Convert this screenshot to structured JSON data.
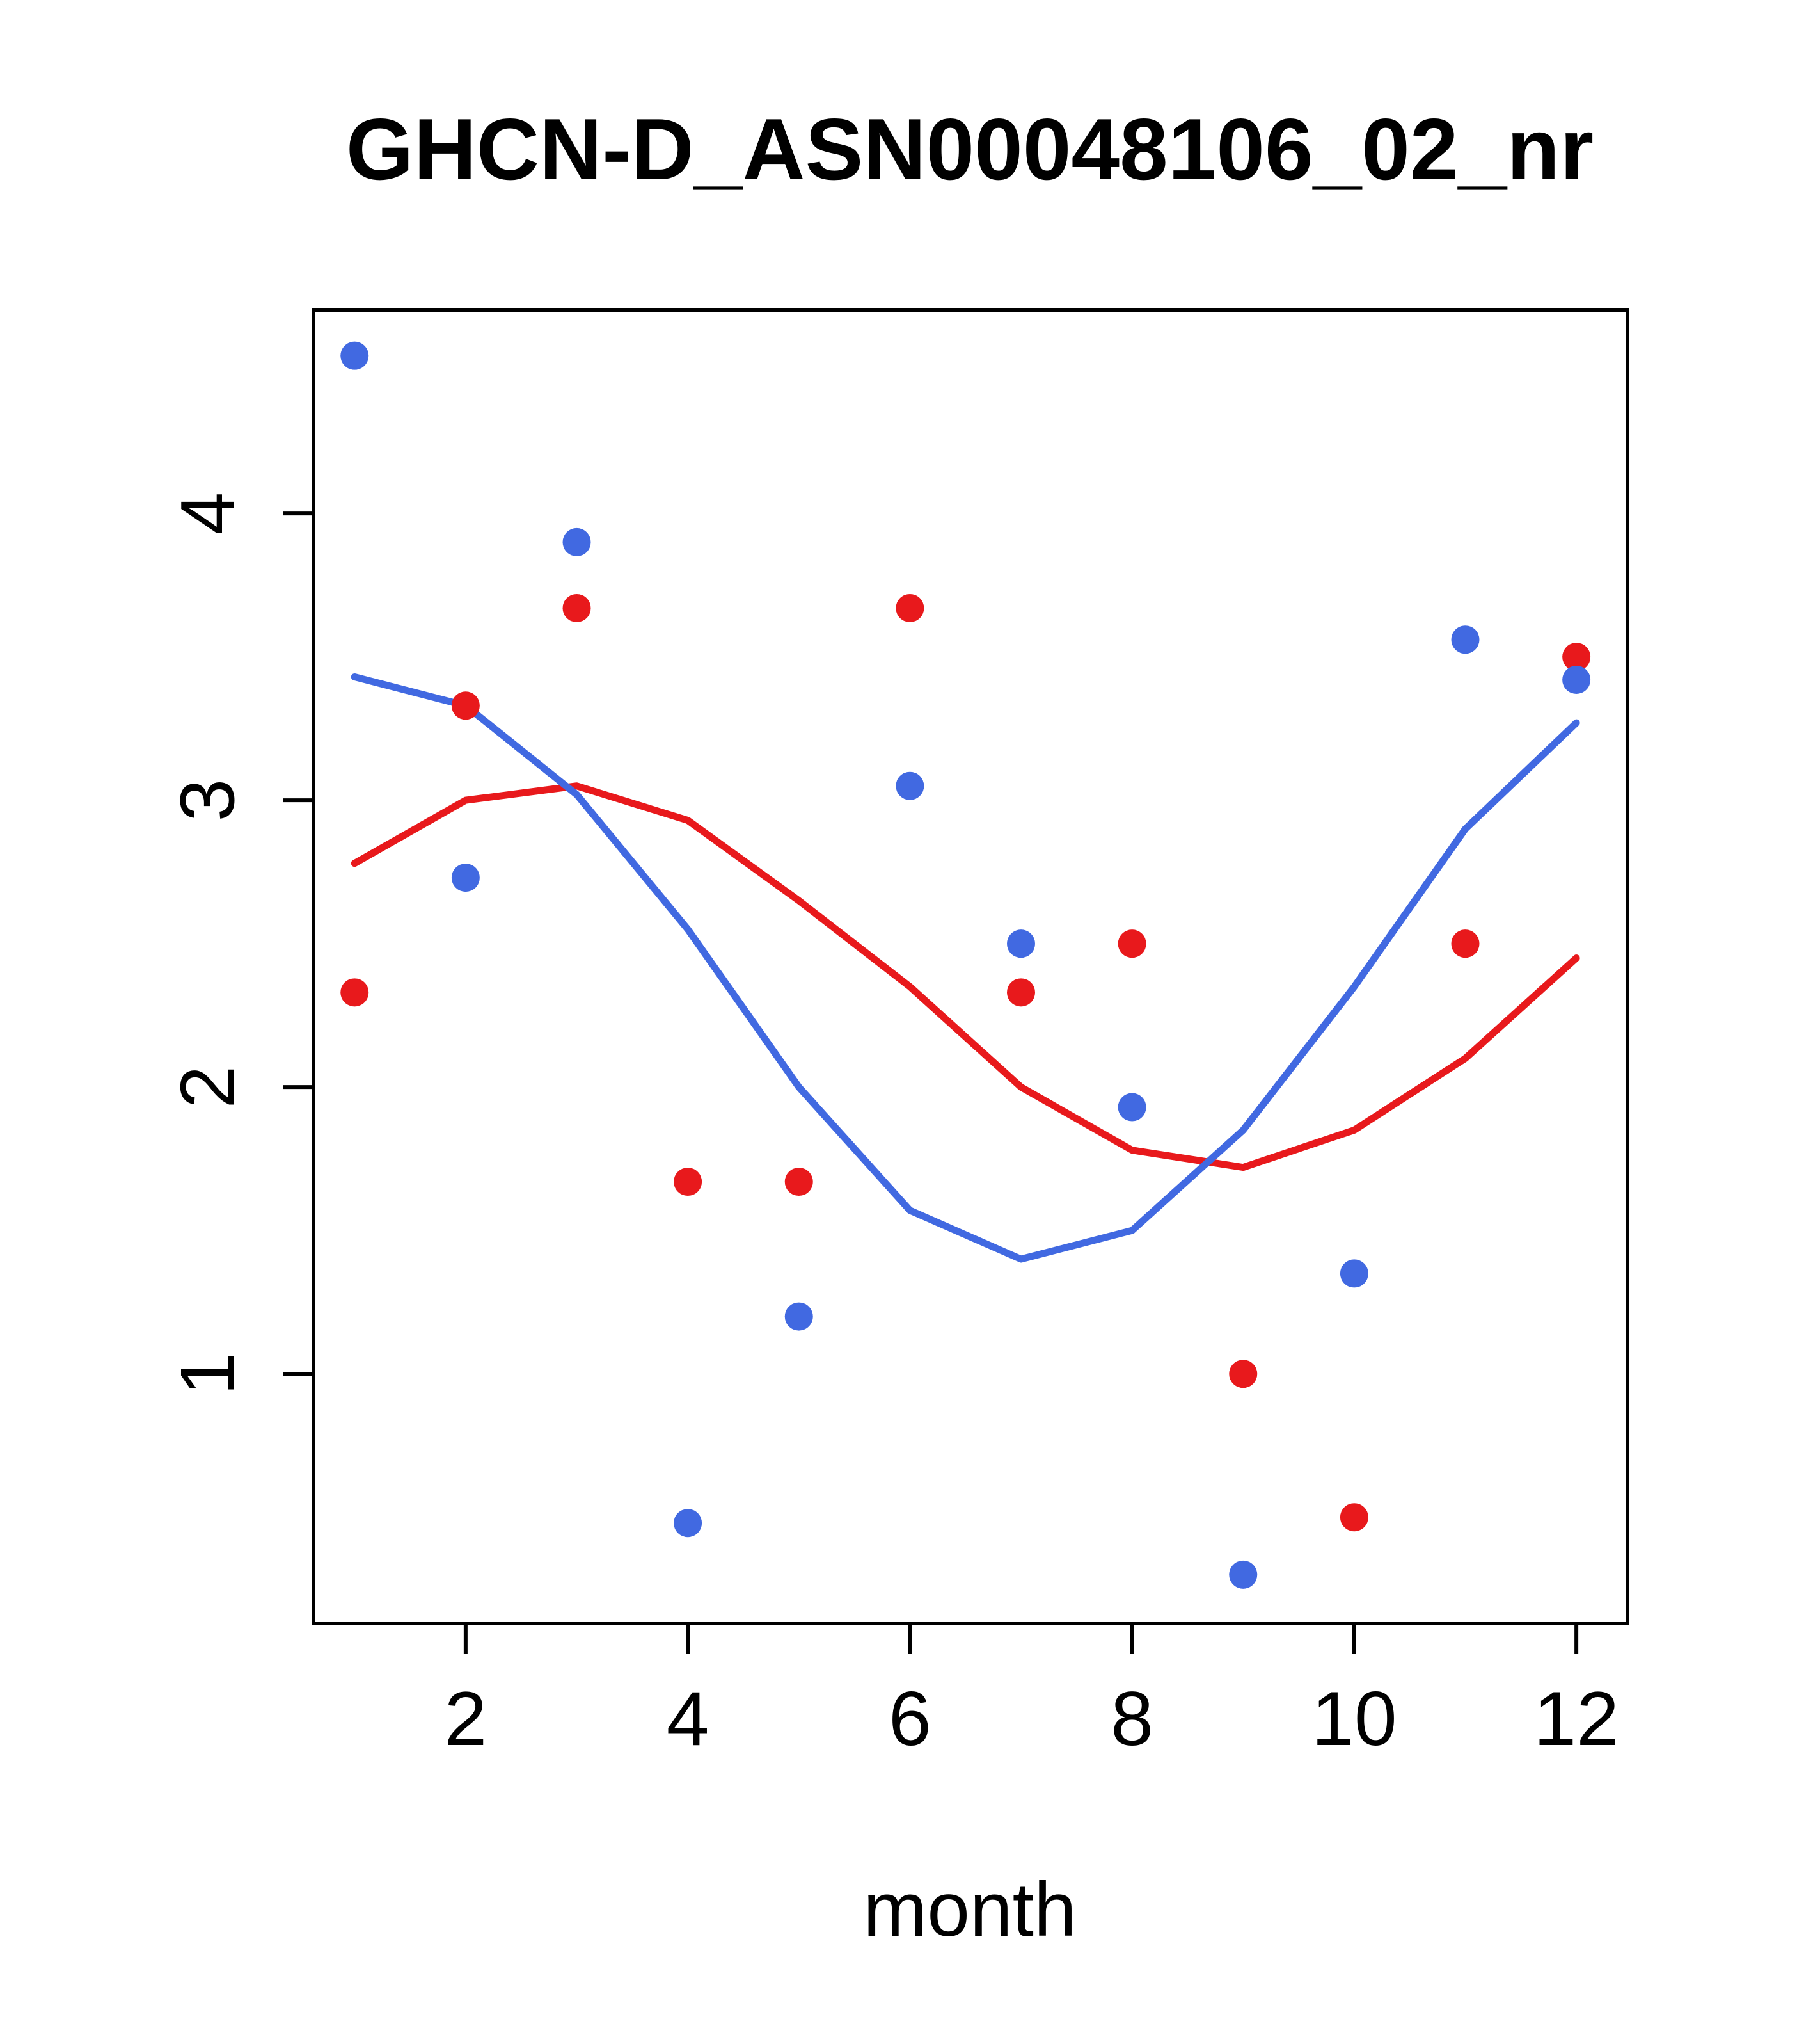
{
  "page": {
    "background": "#ffffff"
  },
  "colors": {
    "blue": "#4169E1",
    "red": "#E8191C",
    "axis": "#000000"
  },
  "chart_data": {
    "type": "scatter",
    "title": "GHCN-D_ASN00048106_02_nr",
    "xlabel": "month",
    "ylabel": "",
    "xlim": [
      0.63,
      12.46
    ],
    "ylim": [
      0.13,
      4.71
    ],
    "x_ticks": [
      2,
      4,
      6,
      8,
      10,
      12
    ],
    "y_ticks": [
      1,
      2,
      3,
      4
    ],
    "grid": false,
    "legend": "none",
    "x": [
      1,
      2,
      3,
      4,
      5,
      6,
      7,
      8,
      9,
      10,
      11,
      12
    ],
    "series": [
      {
        "name": "red-smooth-line",
        "kind": "line",
        "color": "#E8191C",
        "values": [
          2.78,
          3.0,
          3.05,
          2.93,
          2.65,
          2.35,
          2.0,
          1.78,
          1.72,
          1.85,
          2.1,
          2.45
        ]
      },
      {
        "name": "blue-smooth-line",
        "kind": "line",
        "color": "#4169E1",
        "values": [
          3.43,
          3.33,
          3.02,
          2.55,
          2.0,
          1.57,
          1.4,
          1.5,
          1.85,
          2.35,
          2.9,
          3.27
        ]
      },
      {
        "name": "red-points",
        "kind": "scatter",
        "color": "#E8191C",
        "values": [
          2.33,
          3.33,
          3.67,
          1.67,
          1.67,
          3.67,
          2.33,
          2.5,
          1.0,
          0.5,
          2.5,
          3.5
        ]
      },
      {
        "name": "blue-points",
        "kind": "scatter",
        "color": "#4169E1",
        "values": [
          4.55,
          2.73,
          3.9,
          0.48,
          1.2,
          3.05,
          2.5,
          1.93,
          0.3,
          1.35,
          3.56,
          3.42
        ]
      }
    ]
  }
}
